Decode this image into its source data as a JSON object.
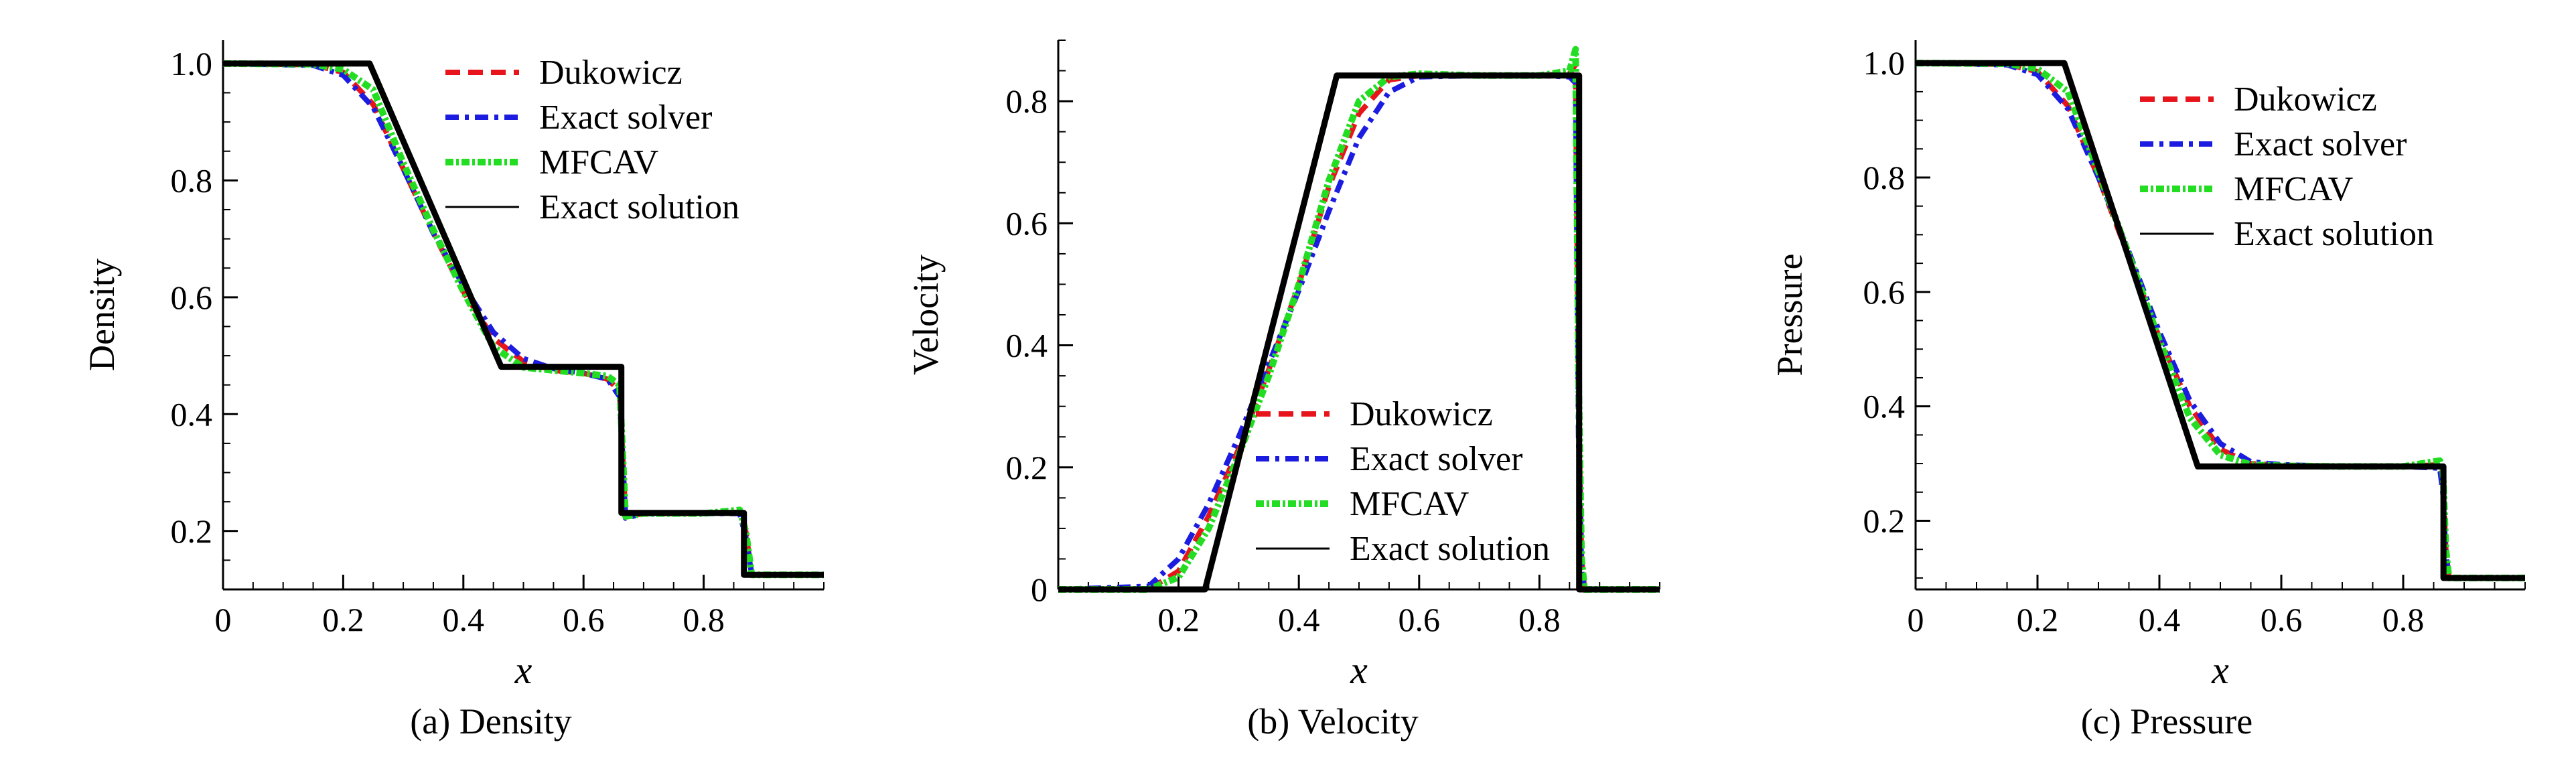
{
  "figure": {
    "captions": [
      "(a) Density",
      "(b) Velocity",
      "(c) Pressure"
    ]
  },
  "chart_data": [
    {
      "type": "line",
      "title": "(a) Density",
      "xlabel": "x",
      "ylabel": "Density",
      "xlim": [
        0,
        1
      ],
      "ylim": [
        0.1,
        1.04
      ],
      "xticks": [
        0,
        0.2,
        0.4,
        0.6,
        0.8
      ],
      "xtick_labels": [
        "0",
        "0.2",
        "0.4",
        "0.6",
        "0.8"
      ],
      "yticks": [
        0.2,
        0.4,
        0.6,
        0.8,
        1.0
      ],
      "ytick_labels": [
        "0.2",
        "0.4",
        "0.6",
        "0.8",
        "1.0"
      ],
      "legend_position": "top-right",
      "series": [
        {
          "name": "Dukowicz",
          "color": "#e8141c",
          "style": "dashed",
          "x": [
            0,
            0.15,
            0.2,
            0.25,
            0.3,
            0.35,
            0.4,
            0.45,
            0.5,
            0.55,
            0.6,
            0.64,
            0.66,
            0.67,
            0.7,
            0.8,
            0.86,
            0.87,
            0.88,
            1.0
          ],
          "y": [
            1.0,
            0.998,
            0.985,
            0.93,
            0.82,
            0.71,
            0.61,
            0.53,
            0.49,
            0.475,
            0.47,
            0.46,
            0.44,
            0.225,
            0.23,
            0.23,
            0.232,
            0.2,
            0.125,
            0.125
          ]
        },
        {
          "name": "Exact solver",
          "color": "#1c1ce0",
          "style": "dashdot",
          "x": [
            0,
            0.15,
            0.2,
            0.25,
            0.3,
            0.35,
            0.4,
            0.45,
            0.5,
            0.55,
            0.6,
            0.64,
            0.66,
            0.67,
            0.7,
            0.8,
            0.86,
            0.87,
            0.88,
            1.0
          ],
          "y": [
            1.0,
            0.997,
            0.98,
            0.925,
            0.82,
            0.71,
            0.62,
            0.54,
            0.495,
            0.478,
            0.47,
            0.46,
            0.43,
            0.222,
            0.23,
            0.23,
            0.23,
            0.19,
            0.125,
            0.125
          ]
        },
        {
          "name": "MFCAV",
          "color": "#22dd22",
          "style": "dashdot-dense",
          "x": [
            0,
            0.15,
            0.2,
            0.25,
            0.3,
            0.35,
            0.4,
            0.45,
            0.5,
            0.55,
            0.6,
            0.64,
            0.66,
            0.67,
            0.7,
            0.8,
            0.86,
            0.87,
            0.88,
            1.0
          ],
          "y": [
            1.0,
            0.999,
            0.99,
            0.955,
            0.83,
            0.715,
            0.61,
            0.515,
            0.48,
            0.475,
            0.47,
            0.465,
            0.45,
            0.225,
            0.23,
            0.23,
            0.236,
            0.2,
            0.125,
            0.125
          ]
        },
        {
          "name": "Exact solution",
          "color": "#000000",
          "style": "solid",
          "x": [
            0,
            0.244,
            0.463,
            0.663,
            0.663,
            0.867,
            0.867,
            1.0
          ],
          "y": [
            1.0,
            1.0,
            0.481,
            0.481,
            0.231,
            0.231,
            0.125,
            0.125
          ]
        }
      ]
    },
    {
      "type": "line",
      "title": "(b) Velocity",
      "xlabel": "x",
      "ylabel": "Velocity",
      "xlim": [
        0,
        1
      ],
      "ylim": [
        0,
        0.9
      ],
      "xticks": [
        0.2,
        0.4,
        0.6,
        0.8
      ],
      "xtick_labels": [
        "0.2",
        "0.4",
        "0.6",
        "0.8"
      ],
      "yticks": [
        0,
        0.2,
        0.4,
        0.6,
        0.8
      ],
      "ytick_labels": [
        "0",
        "0.2",
        "0.4",
        "0.6",
        "0.8"
      ],
      "legend_position": "bottom-right",
      "series": [
        {
          "name": "Dukowicz",
          "color": "#e8141c",
          "style": "dashed",
          "x": [
            0,
            0.15,
            0.2,
            0.25,
            0.3,
            0.35,
            0.4,
            0.45,
            0.5,
            0.55,
            0.6,
            0.7,
            0.8,
            0.85,
            0.86,
            0.865,
            0.87,
            0.875,
            0.88,
            1.0
          ],
          "y": [
            0,
            0.0,
            0.03,
            0.12,
            0.23,
            0.36,
            0.5,
            0.66,
            0.78,
            0.835,
            0.842,
            0.842,
            0.842,
            0.845,
            0.86,
            0.3,
            0.05,
            0.0,
            0.0,
            0.0
          ]
        },
        {
          "name": "Exact solver",
          "color": "#1c1ce0",
          "style": "dashdot",
          "x": [
            0,
            0.15,
            0.2,
            0.25,
            0.3,
            0.35,
            0.4,
            0.45,
            0.5,
            0.55,
            0.6,
            0.7,
            0.8,
            0.85,
            0.86,
            0.865,
            0.87,
            0.875,
            0.88,
            1.0
          ],
          "y": [
            0,
            0.005,
            0.05,
            0.14,
            0.25,
            0.37,
            0.49,
            0.62,
            0.74,
            0.815,
            0.84,
            0.842,
            0.842,
            0.84,
            0.83,
            0.25,
            0.03,
            0.0,
            0.0,
            0.0
          ]
        },
        {
          "name": "MFCAV",
          "color": "#22dd22",
          "style": "dashdot-dense",
          "x": [
            0,
            0.15,
            0.2,
            0.25,
            0.3,
            0.35,
            0.4,
            0.45,
            0.5,
            0.55,
            0.6,
            0.7,
            0.8,
            0.85,
            0.86,
            0.865,
            0.87,
            0.875,
            0.88,
            1.0
          ],
          "y": [
            0,
            0.0,
            0.02,
            0.1,
            0.22,
            0.35,
            0.5,
            0.67,
            0.8,
            0.84,
            0.845,
            0.842,
            0.842,
            0.85,
            0.885,
            0.35,
            0.05,
            0.0,
            0.0,
            0.0
          ]
        },
        {
          "name": "Exact solution",
          "color": "#000000",
          "style": "solid",
          "x": [
            0,
            0.244,
            0.463,
            0.866,
            0.866,
            1.0
          ],
          "y": [
            0,
            0.0,
            0.842,
            0.842,
            0.0,
            0.0
          ]
        }
      ]
    },
    {
      "type": "line",
      "title": "(c) Pressure",
      "xlabel": "x",
      "ylabel": "Pressure",
      "xlim": [
        0,
        1
      ],
      "ylim": [
        0.08,
        1.04
      ],
      "xticks": [
        0,
        0.2,
        0.4,
        0.6,
        0.8
      ],
      "xtick_labels": [
        "0",
        "0.2",
        "0.4",
        "0.6",
        "0.8"
      ],
      "yticks": [
        0.2,
        0.4,
        0.6,
        0.8,
        1.0
      ],
      "ytick_labels": [
        "0.2",
        "0.4",
        "0.6",
        "0.8",
        "1.0"
      ],
      "legend_position": "top-right",
      "series": [
        {
          "name": "Dukowicz",
          "color": "#e8141c",
          "style": "dashed",
          "x": [
            0,
            0.15,
            0.2,
            0.25,
            0.3,
            0.35,
            0.4,
            0.45,
            0.5,
            0.55,
            0.6,
            0.7,
            0.8,
            0.86,
            0.865,
            0.87,
            0.875,
            1.0
          ],
          "y": [
            1.0,
            0.998,
            0.985,
            0.925,
            0.8,
            0.66,
            0.52,
            0.4,
            0.325,
            0.3,
            0.297,
            0.295,
            0.295,
            0.298,
            0.27,
            0.15,
            0.1,
            0.1
          ]
        },
        {
          "name": "Exact solver",
          "color": "#1c1ce0",
          "style": "dashdot",
          "x": [
            0,
            0.15,
            0.2,
            0.25,
            0.3,
            0.35,
            0.4,
            0.45,
            0.5,
            0.55,
            0.6,
            0.7,
            0.8,
            0.86,
            0.865,
            0.87,
            0.875,
            1.0
          ],
          "y": [
            1.0,
            0.997,
            0.98,
            0.92,
            0.8,
            0.67,
            0.53,
            0.41,
            0.335,
            0.303,
            0.298,
            0.295,
            0.295,
            0.292,
            0.25,
            0.14,
            0.1,
            0.1
          ]
        },
        {
          "name": "MFCAV",
          "color": "#22dd22",
          "style": "dashdot-dense",
          "x": [
            0,
            0.15,
            0.2,
            0.25,
            0.3,
            0.35,
            0.4,
            0.45,
            0.5,
            0.55,
            0.6,
            0.7,
            0.8,
            0.86,
            0.865,
            0.87,
            0.875,
            1.0
          ],
          "y": [
            1.0,
            0.999,
            0.99,
            0.95,
            0.81,
            0.665,
            0.515,
            0.38,
            0.315,
            0.298,
            0.296,
            0.295,
            0.295,
            0.305,
            0.29,
            0.15,
            0.1,
            0.1
          ]
        },
        {
          "name": "Exact solution",
          "color": "#000000",
          "style": "solid",
          "x": [
            0,
            0.244,
            0.463,
            0.866,
            0.866,
            1.0
          ],
          "y": [
            1.0,
            1.0,
            0.295,
            0.295,
            0.1,
            0.1
          ]
        }
      ]
    }
  ]
}
